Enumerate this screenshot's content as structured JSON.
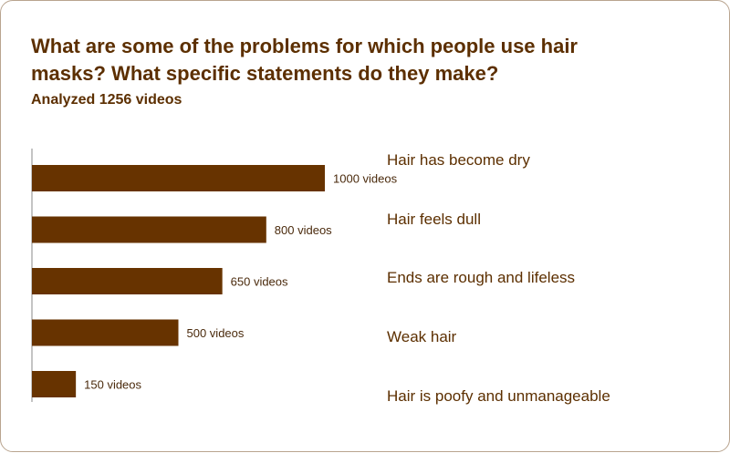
{
  "header": {
    "title": "What are some of the problems for which people use hair masks? What specific statements do they make?",
    "subtitle": "Analyzed 1256 videos"
  },
  "colors": {
    "bar": "#673300",
    "text": "#5c2f00",
    "value_text": "#4a2a0c",
    "border": "#b9a48f"
  },
  "chart_data": {
    "type": "bar",
    "orientation": "horizontal",
    "categories": [
      "Hair has become dry",
      "Hair feels dull",
      "Ends are rough and lifeless",
      "Weak hair",
      "Hair is poofy and unmanageable"
    ],
    "values": [
      1000,
      800,
      650,
      500,
      150
    ],
    "value_labels": [
      "1000 videos",
      "800 videos",
      "650 videos",
      "500 videos",
      "150 videos"
    ],
    "title": "What are some of the problems for which people use hair masks? What specific statements do they make?",
    "subtitle": "Analyzed 1256 videos",
    "xlim": [
      0,
      1000
    ],
    "grid": false,
    "legend": "none"
  }
}
